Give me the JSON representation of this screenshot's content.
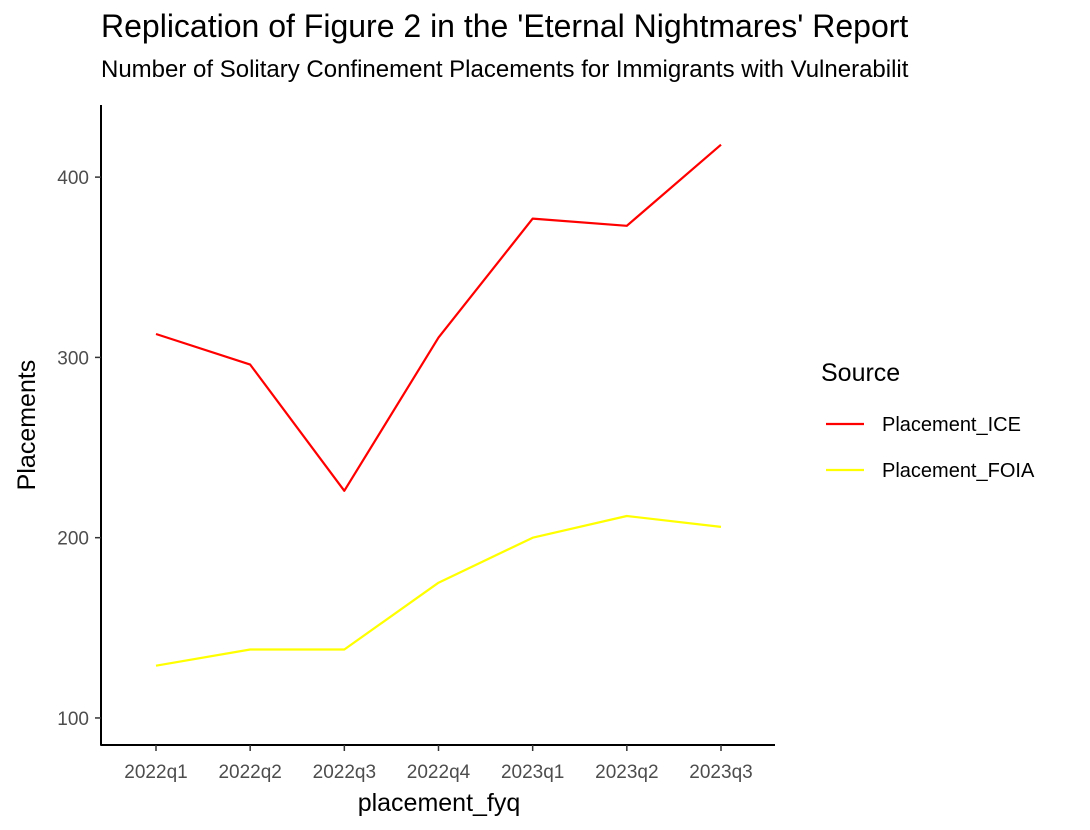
{
  "chart_data": {
    "type": "line",
    "title": "Replication of Figure 2 in the 'Eternal Nightmares' Report",
    "subtitle": "Number of Solitary Confinement Placements for Immigrants with Vulnerabilit",
    "xlabel": "placement_fyq",
    "ylabel": "Placements",
    "categories": [
      "2022q1",
      "2022q2",
      "2022q3",
      "2022q4",
      "2023q1",
      "2023q2",
      "2023q3"
    ],
    "yticks": [
      100,
      200,
      300,
      400
    ],
    "ylim": [
      85,
      440
    ],
    "grid": false,
    "legend": {
      "title": "Source",
      "position": "right"
    },
    "series": [
      {
        "name": "Placement_ICE",
        "color": "#ff0000",
        "values": [
          313,
          296,
          226,
          311,
          377,
          373,
          418
        ]
      },
      {
        "name": "Placement_FOIA",
        "color": "#ffff00",
        "values": [
          129,
          138,
          138,
          175,
          200,
          212,
          206
        ]
      }
    ]
  }
}
